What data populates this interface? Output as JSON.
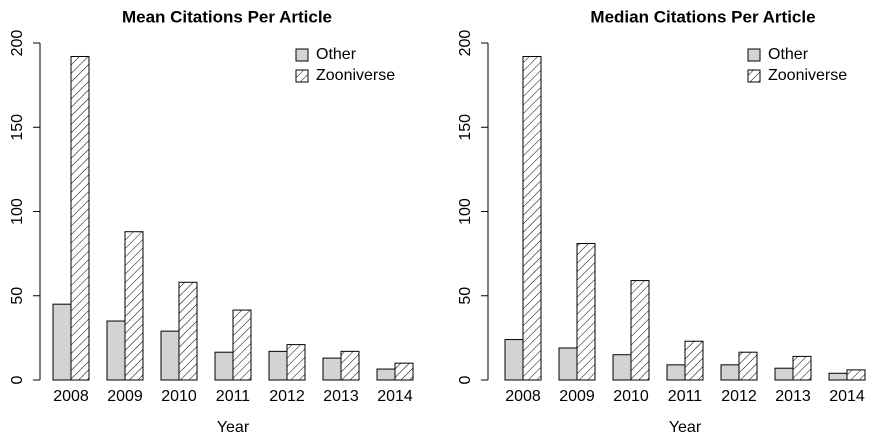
{
  "chart_data": [
    {
      "type": "bar",
      "title": "Mean Citations Per Article",
      "xlabel": "Year",
      "categories": [
        "2008",
        "2009",
        "2010",
        "2011",
        "2012",
        "2013",
        "2014"
      ],
      "series": [
        {
          "name": "Other",
          "color": "#d3d3d3",
          "hatch": false,
          "values": [
            45,
            35,
            29,
            16.5,
            17,
            13,
            6.5
          ]
        },
        {
          "name": "Zooniverse",
          "color": "#ffffff",
          "hatch": true,
          "values": [
            192,
            88,
            58,
            41.5,
            21,
            17,
            10
          ]
        }
      ],
      "ylim": [
        0,
        200
      ],
      "yticks": [
        0,
        50,
        100,
        150,
        200
      ],
      "legend": "top-right"
    },
    {
      "type": "bar",
      "title": "Median Citations Per Article",
      "xlabel": "Year",
      "categories": [
        "2008",
        "2009",
        "2010",
        "2011",
        "2012",
        "2013",
        "2014"
      ],
      "series": [
        {
          "name": "Other",
          "color": "#d3d3d3",
          "hatch": false,
          "values": [
            24,
            19,
            15,
            9,
            9,
            7,
            4
          ]
        },
        {
          "name": "Zooniverse",
          "color": "#ffffff",
          "hatch": true,
          "values": [
            192,
            81,
            59,
            23,
            16.5,
            14,
            6
          ]
        }
      ],
      "ylim": [
        0,
        200
      ],
      "yticks": [
        0,
        50,
        100,
        150,
        200
      ],
      "legend": "top-right"
    }
  ]
}
